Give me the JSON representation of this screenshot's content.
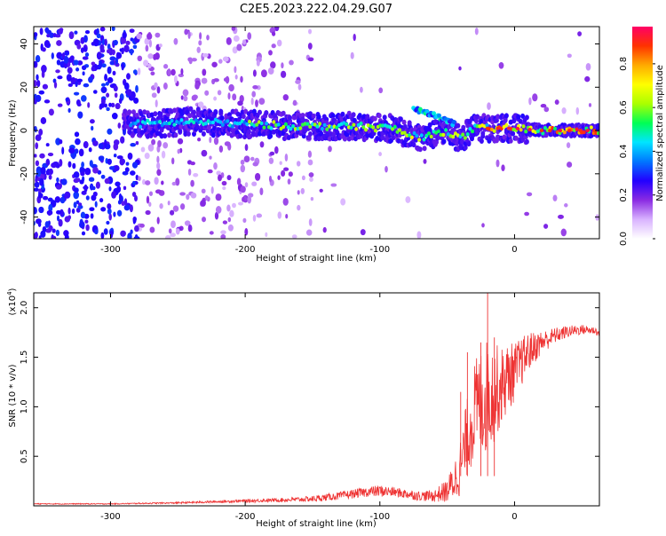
{
  "title": "C2E5.2023.222.04.29.G07",
  "colors": {
    "snr_line": "#ee3333",
    "frame": "#000000",
    "background": "#ffffff"
  },
  "chart_data": [
    {
      "type": "heatmap",
      "xlabel": "Height of straight line (km)",
      "ylabel": "Frequency (Hz)",
      "xlim": [
        -357,
        63
      ],
      "ylim": [
        -50,
        48
      ],
      "xticks": [
        -300,
        -200,
        -100,
        0
      ],
      "yticks": [
        -40,
        -20,
        0,
        20,
        40
      ],
      "colorbar": {
        "label": "Normalized spectral amplitude",
        "range": [
          0,
          0.97
        ],
        "ticks": [
          0.0,
          0.2,
          0.4,
          0.6,
          0.8
        ],
        "tick_labels": [
          "0.0",
          "0.2",
          "0.4",
          "0.6",
          "0.8"
        ],
        "colormap": [
          "#ffffff",
          "#d9b3ff",
          "#8a2be2",
          "#2200ff",
          "#0077ff",
          "#00e5ff",
          "#00ff55",
          "#aaff00",
          "#ffff00",
          "#ffaa00",
          "#ff3300",
          "#ff0066"
        ]
      },
      "ridge": [
        {
          "x": -280,
          "f": 3
        },
        {
          "x": -240,
          "f": 4
        },
        {
          "x": -200,
          "f": 3
        },
        {
          "x": -160,
          "f": 2
        },
        {
          "x": -120,
          "f": 2
        },
        {
          "x": -90,
          "f": 1
        },
        {
          "x": -80,
          "f": -2
        },
        {
          "x": -70,
          "f": -3
        },
        {
          "x": -60,
          "f": -2
        },
        {
          "x": -50,
          "f": 0
        },
        {
          "x": -40,
          "f": -4
        },
        {
          "x": -30,
          "f": 1
        },
        {
          "x": -20,
          "f": 1
        },
        {
          "x": 0,
          "f": 1
        },
        {
          "x": 20,
          "f": 0
        },
        {
          "x": 63,
          "f": 0
        }
      ],
      "secondary_branch": [
        {
          "x": -75,
          "f": 10
        },
        {
          "x": -65,
          "f": 8
        },
        {
          "x": -55,
          "f": 6
        },
        {
          "x": -45,
          "f": 3
        }
      ]
    },
    {
      "type": "line",
      "xlabel": "Height of straight line (km)",
      "ylabel": "SNR (10 * v/v)",
      "y_multiplier_label": "(x10",
      "y_multiplier_exp": "4",
      "y_multiplier_close": ")",
      "xlim": [
        -357,
        63
      ],
      "ylim": [
        0,
        2.15
      ],
      "xticks": [
        -300,
        -200,
        -100,
        0
      ],
      "yticks": [
        0.5,
        1.0,
        1.5,
        2.0
      ],
      "ytick_labels": [
        "0.5",
        "1.0",
        "1.5",
        "2.0"
      ],
      "series": [
        {
          "x": [
            -357,
            -300,
            -250,
            -200,
            -170,
            -150,
            -130,
            -110,
            -100,
            -90,
            -80,
            -70,
            -60,
            -50,
            -45,
            -40,
            -35,
            -30,
            -25,
            -20,
            -15,
            -10,
            -5,
            0,
            5,
            10,
            20,
            30,
            40,
            50,
            60,
            63
          ],
          "y": [
            0.02,
            0.02,
            0.03,
            0.05,
            0.06,
            0.07,
            0.1,
            0.14,
            0.15,
            0.14,
            0.12,
            0.1,
            0.1,
            0.15,
            0.25,
            0.4,
            0.7,
            0.95,
            1.05,
            1.1,
            1.15,
            1.2,
            1.3,
            1.35,
            1.45,
            1.55,
            1.65,
            1.72,
            1.76,
            1.78,
            1.77,
            1.73
          ],
          "noise": [
            0.005,
            0.005,
            0.008,
            0.015,
            0.02,
            0.03,
            0.04,
            0.05,
            0.06,
            0.05,
            0.05,
            0.05,
            0.06,
            0.12,
            0.2,
            0.3,
            0.4,
            0.5,
            0.55,
            0.6,
            0.5,
            0.4,
            0.35,
            0.3,
            0.25,
            0.2,
            0.12,
            0.08,
            0.06,
            0.05,
            0.04,
            0.03
          ]
        }
      ],
      "spikes": [
        {
          "x": -20,
          "y": 2.15
        },
        {
          "x": -25,
          "y": 1.65
        },
        {
          "x": -35,
          "y": 1.55
        },
        {
          "x": -15,
          "y": 1.7
        },
        {
          "x": -40,
          "y": 1.15
        }
      ]
    }
  ]
}
